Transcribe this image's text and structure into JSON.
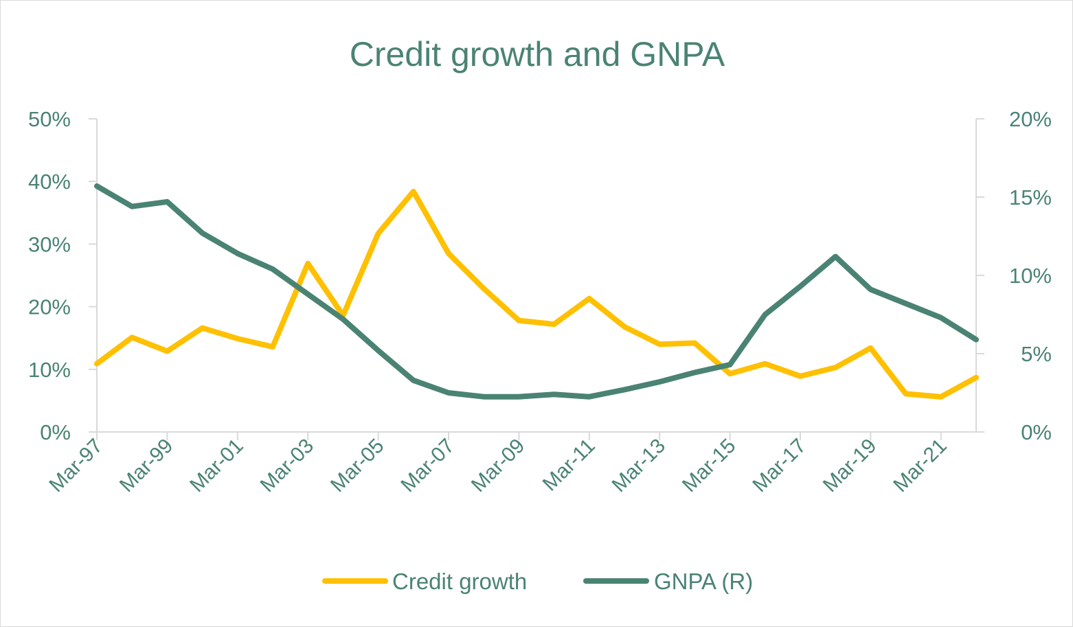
{
  "chart_data": {
    "type": "line",
    "title": "Credit growth and GNPA",
    "x": [
      "Mar-97",
      "Mar-98",
      "Mar-99",
      "Mar-00",
      "Mar-01",
      "Mar-02",
      "Mar-03",
      "Mar-04",
      "Mar-05",
      "Mar-06",
      "Mar-07",
      "Mar-08",
      "Mar-09",
      "Mar-10",
      "Mar-11",
      "Mar-12",
      "Mar-13",
      "Mar-14",
      "Mar-15",
      "Mar-16",
      "Mar-17",
      "Mar-18",
      "Mar-19",
      "Mar-20",
      "Mar-21",
      "Mar-22"
    ],
    "x_tick_labels": [
      "Mar-97",
      "Mar-99",
      "Mar-01",
      "Mar-03",
      "Mar-05",
      "Mar-07",
      "Mar-09",
      "Mar-11",
      "Mar-13",
      "Mar-15",
      "Mar-17",
      "Mar-19",
      "Mar-21"
    ],
    "series": [
      {
        "name": "Credit growth",
        "axis": "left",
        "color": "#ffc000",
        "values": [
          10.9,
          15.1,
          12.9,
          16.6,
          14.9,
          13.6,
          26.9,
          18.6,
          31.7,
          38.4,
          28.5,
          22.9,
          17.8,
          17.2,
          21.3,
          16.8,
          14.0,
          14.2,
          9.3,
          10.9,
          8.9,
          10.3,
          13.4,
          6.1,
          5.6,
          8.7
        ]
      },
      {
        "name": "GNPA (R)",
        "axis": "right",
        "color": "#4a8373",
        "values": [
          15.7,
          14.4,
          14.7,
          12.7,
          11.4,
          10.4,
          8.8,
          7.2,
          5.2,
          3.3,
          2.5,
          2.25,
          2.25,
          2.4,
          2.25,
          2.7,
          3.2,
          3.8,
          4.3,
          7.5,
          9.3,
          11.2,
          9.1,
          8.2,
          7.3,
          5.9
        ]
      }
    ],
    "y_left": {
      "min": 0,
      "max": 50,
      "ticks": [
        "0%",
        "10%",
        "20%",
        "30%",
        "40%",
        "50%"
      ]
    },
    "y_right": {
      "min": 0,
      "max": 20,
      "ticks": [
        "0%",
        "5%",
        "10%",
        "15%",
        "20%"
      ]
    },
    "grid": false,
    "legend_position": "bottom"
  }
}
